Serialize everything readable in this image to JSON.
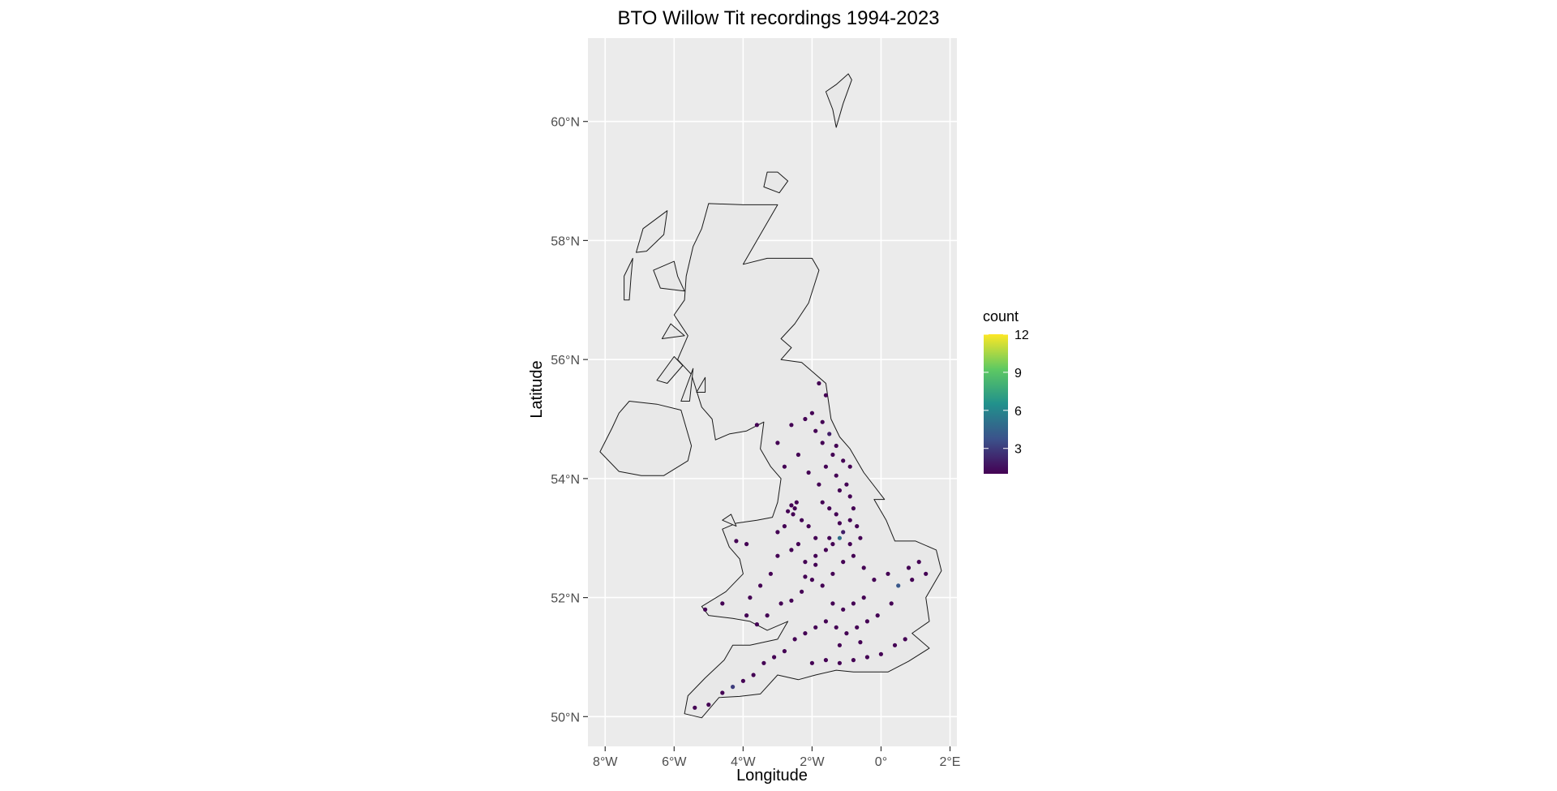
{
  "title": "BTO Willow Tit recordings 1994-2023",
  "colors": {
    "panel_bg": "#ebebeb",
    "grid": "#ffffff",
    "land": "#e8e8e8",
    "coast": "#1a1a1a",
    "viridis": [
      "#440154",
      "#3b528b",
      "#21918c",
      "#5ec962",
      "#fde725"
    ]
  },
  "chart_data": {
    "type": "scatter",
    "title": "BTO Willow Tit recordings 1994-2023",
    "xlabel": "Longitude",
    "ylabel": "Latitude",
    "xlim": [
      -8.5,
      2.2
    ],
    "ylim": [
      49.5,
      61.4
    ],
    "x_ticks": [
      -8,
      -6,
      -4,
      -2,
      0,
      2
    ],
    "x_tick_labels": [
      "8°W",
      "6°W",
      "4°W",
      "2°W",
      "0°",
      "2°E"
    ],
    "y_ticks": [
      50,
      52,
      54,
      56,
      58,
      60
    ],
    "y_tick_labels": [
      "50°N",
      "52°N",
      "54°N",
      "56°N",
      "58°N",
      "60°N"
    ],
    "grid": true,
    "legend": {
      "title": "count",
      "placement": "right",
      "range": [
        1,
        12
      ],
      "breaks": [
        3,
        6,
        9,
        12
      ],
      "break_labels": [
        "3",
        "6",
        "9",
        "12"
      ]
    },
    "regions": [
      {
        "name": "great-britain",
        "coords": [
          [
            -5.7,
            50.05
          ],
          [
            -5.2,
            49.98
          ],
          [
            -4.7,
            50.32
          ],
          [
            -4.1,
            50.34
          ],
          [
            -3.5,
            50.38
          ],
          [
            -3.0,
            50.7
          ],
          [
            -2.4,
            50.62
          ],
          [
            -1.9,
            50.7
          ],
          [
            -1.3,
            50.78
          ],
          [
            -0.8,
            50.75
          ],
          [
            0.2,
            50.75
          ],
          [
            0.8,
            50.93
          ],
          [
            1.4,
            51.15
          ],
          [
            0.9,
            51.4
          ],
          [
            1.4,
            51.6
          ],
          [
            1.3,
            52.0
          ],
          [
            1.75,
            52.45
          ],
          [
            1.6,
            52.8
          ],
          [
            1.0,
            52.95
          ],
          [
            0.4,
            52.95
          ],
          [
            0.15,
            53.3
          ],
          [
            -0.2,
            53.65
          ],
          [
            0.1,
            53.65
          ],
          [
            -0.5,
            54.1
          ],
          [
            -0.9,
            54.5
          ],
          [
            -1.2,
            54.7
          ],
          [
            -1.45,
            55.0
          ],
          [
            -1.6,
            55.6
          ],
          [
            -2.0,
            55.8
          ],
          [
            -2.3,
            55.95
          ],
          [
            -2.9,
            56.0
          ],
          [
            -2.6,
            56.2
          ],
          [
            -2.9,
            56.35
          ],
          [
            -2.5,
            56.6
          ],
          [
            -2.1,
            56.95
          ],
          [
            -1.8,
            57.5
          ],
          [
            -2.0,
            57.7
          ],
          [
            -3.3,
            57.7
          ],
          [
            -4.0,
            57.6
          ],
          [
            -3.5,
            58.1
          ],
          [
            -3.0,
            58.6
          ],
          [
            -4.0,
            58.6
          ],
          [
            -5.0,
            58.62
          ],
          [
            -5.2,
            58.2
          ],
          [
            -5.45,
            57.9
          ],
          [
            -5.65,
            57.4
          ],
          [
            -5.7,
            57.0
          ],
          [
            -6.0,
            56.75
          ],
          [
            -5.6,
            56.4
          ],
          [
            -5.9,
            56.0
          ],
          [
            -5.5,
            55.75
          ],
          [
            -5.2,
            55.2
          ],
          [
            -4.9,
            55.0
          ],
          [
            -4.8,
            54.65
          ],
          [
            -4.4,
            54.75
          ],
          [
            -3.9,
            54.8
          ],
          [
            -3.4,
            54.95
          ],
          [
            -3.5,
            54.5
          ],
          [
            -3.2,
            54.2
          ],
          [
            -2.9,
            54.0
          ],
          [
            -3.0,
            53.6
          ],
          [
            -3.15,
            53.35
          ],
          [
            -3.6,
            53.3
          ],
          [
            -4.2,
            53.25
          ],
          [
            -4.6,
            53.15
          ],
          [
            -4.4,
            52.85
          ],
          [
            -4.1,
            52.65
          ],
          [
            -4.0,
            52.4
          ],
          [
            -4.5,
            52.1
          ],
          [
            -5.2,
            51.85
          ],
          [
            -5.0,
            51.7
          ],
          [
            -4.3,
            51.65
          ],
          [
            -3.8,
            51.6
          ],
          [
            -3.3,
            51.45
          ],
          [
            -2.7,
            51.6
          ],
          [
            -3.0,
            51.3
          ],
          [
            -3.8,
            51.2
          ],
          [
            -4.3,
            51.2
          ],
          [
            -4.55,
            50.95
          ],
          [
            -5.1,
            50.65
          ],
          [
            -5.6,
            50.35
          ],
          [
            -5.7,
            50.05
          ]
        ]
      },
      {
        "name": "northern-ireland",
        "coords": [
          [
            -8.15,
            54.45
          ],
          [
            -7.6,
            54.12
          ],
          [
            -6.95,
            54.05
          ],
          [
            -6.3,
            54.05
          ],
          [
            -5.6,
            54.3
          ],
          [
            -5.5,
            54.55
          ],
          [
            -5.8,
            55.15
          ],
          [
            -6.5,
            55.25
          ],
          [
            -7.3,
            55.3
          ],
          [
            -7.6,
            55.1
          ],
          [
            -7.8,
            54.85
          ],
          [
            -8.15,
            54.45
          ]
        ]
      },
      {
        "name": "lewis-harris",
        "coords": [
          [
            -6.2,
            58.5
          ],
          [
            -6.9,
            58.2
          ],
          [
            -7.1,
            57.8
          ],
          [
            -6.8,
            57.82
          ],
          [
            -6.3,
            58.1
          ],
          [
            -6.2,
            58.5
          ]
        ]
      },
      {
        "name": "uist",
        "coords": [
          [
            -7.2,
            57.7
          ],
          [
            -7.45,
            57.4
          ],
          [
            -7.45,
            57.0
          ],
          [
            -7.3,
            57.0
          ],
          [
            -7.25,
            57.4
          ],
          [
            -7.2,
            57.7
          ]
        ]
      },
      {
        "name": "skye",
        "coords": [
          [
            -6.0,
            57.65
          ],
          [
            -6.6,
            57.5
          ],
          [
            -6.4,
            57.2
          ],
          [
            -5.7,
            57.15
          ],
          [
            -5.9,
            57.4
          ],
          [
            -6.0,
            57.65
          ]
        ]
      },
      {
        "name": "mull",
        "coords": [
          [
            -5.7,
            56.4
          ],
          [
            -6.35,
            56.35
          ],
          [
            -6.1,
            56.6
          ],
          [
            -5.7,
            56.4
          ]
        ]
      },
      {
        "name": "islay-jura",
        "coords": [
          [
            -6.0,
            56.05
          ],
          [
            -6.5,
            55.65
          ],
          [
            -6.2,
            55.6
          ],
          [
            -5.75,
            55.9
          ],
          [
            -6.0,
            56.05
          ]
        ]
      },
      {
        "name": "arran",
        "coords": [
          [
            -5.1,
            55.7
          ],
          [
            -5.35,
            55.45
          ],
          [
            -5.1,
            55.45
          ],
          [
            -5.1,
            55.7
          ]
        ]
      },
      {
        "name": "kintyre",
        "coords": [
          [
            -5.45,
            55.85
          ],
          [
            -5.8,
            55.3
          ],
          [
            -5.55,
            55.3
          ],
          [
            -5.45,
            55.85
          ]
        ]
      },
      {
        "name": "orkney",
        "coords": [
          [
            -3.3,
            59.15
          ],
          [
            -3.4,
            58.9
          ],
          [
            -2.95,
            58.8
          ],
          [
            -2.7,
            59.0
          ],
          [
            -3.0,
            59.15
          ],
          [
            -3.3,
            59.15
          ]
        ]
      },
      {
        "name": "shetland",
        "coords": [
          [
            -1.3,
            59.9
          ],
          [
            -1.4,
            60.2
          ],
          [
            -1.6,
            60.5
          ],
          [
            -1.3,
            60.62
          ],
          [
            -0.95,
            60.8
          ],
          [
            -0.85,
            60.7
          ],
          [
            -1.1,
            60.3
          ],
          [
            -1.3,
            59.9
          ]
        ]
      },
      {
        "name": "anglesey",
        "coords": [
          [
            -4.6,
            53.3
          ],
          [
            -4.2,
            53.2
          ],
          [
            -4.35,
            53.4
          ],
          [
            -4.6,
            53.3
          ]
        ]
      }
    ],
    "points": [
      {
        "x": -1.8,
        "y": 55.6,
        "value": 1
      },
      {
        "x": -1.6,
        "y": 55.4,
        "value": 1
      },
      {
        "x": -2.0,
        "y": 55.1,
        "value": 1
      },
      {
        "x": -1.7,
        "y": 54.95,
        "value": 1
      },
      {
        "x": -1.9,
        "y": 54.8,
        "value": 1
      },
      {
        "x": -1.5,
        "y": 54.75,
        "value": 2
      },
      {
        "x": -1.3,
        "y": 54.55,
        "value": 1
      },
      {
        "x": -2.2,
        "y": 55.0,
        "value": 1
      },
      {
        "x": -1.7,
        "y": 54.6,
        "value": 1
      },
      {
        "x": -1.4,
        "y": 54.4,
        "value": 1
      },
      {
        "x": -1.1,
        "y": 54.3,
        "value": 1
      },
      {
        "x": -0.9,
        "y": 54.2,
        "value": 1
      },
      {
        "x": -1.6,
        "y": 54.2,
        "value": 1
      },
      {
        "x": -1.3,
        "y": 54.05,
        "value": 1
      },
      {
        "x": -1.0,
        "y": 53.9,
        "value": 1
      },
      {
        "x": -1.8,
        "y": 53.9,
        "value": 1
      },
      {
        "x": -2.1,
        "y": 54.1,
        "value": 1
      },
      {
        "x": -2.6,
        "y": 53.55,
        "value": 1
      },
      {
        "x": -2.5,
        "y": 53.5,
        "value": 1
      },
      {
        "x": -2.7,
        "y": 53.45,
        "value": 1
      },
      {
        "x": -2.55,
        "y": 53.4,
        "value": 1
      },
      {
        "x": -2.45,
        "y": 53.6,
        "value": 1
      },
      {
        "x": -2.3,
        "y": 53.3,
        "value": 1
      },
      {
        "x": -2.1,
        "y": 53.2,
        "value": 1
      },
      {
        "x": -1.7,
        "y": 53.6,
        "value": 1
      },
      {
        "x": -1.5,
        "y": 53.5,
        "value": 1
      },
      {
        "x": -1.3,
        "y": 53.4,
        "value": 1
      },
      {
        "x": -1.2,
        "y": 53.25,
        "value": 1
      },
      {
        "x": -1.1,
        "y": 53.1,
        "value": 2
      },
      {
        "x": -0.9,
        "y": 53.3,
        "value": 1
      },
      {
        "x": -0.8,
        "y": 53.5,
        "value": 1
      },
      {
        "x": -0.7,
        "y": 53.2,
        "value": 1
      },
      {
        "x": -0.6,
        "y": 53.0,
        "value": 1
      },
      {
        "x": -1.4,
        "y": 52.9,
        "value": 1
      },
      {
        "x": -1.6,
        "y": 52.8,
        "value": 1
      },
      {
        "x": -1.9,
        "y": 52.7,
        "value": 1
      },
      {
        "x": -2.2,
        "y": 52.6,
        "value": 1
      },
      {
        "x": -2.6,
        "y": 52.8,
        "value": 1
      },
      {
        "x": -3.0,
        "y": 52.7,
        "value": 1
      },
      {
        "x": -3.2,
        "y": 52.4,
        "value": 1
      },
      {
        "x": -3.5,
        "y": 52.2,
        "value": 1
      },
      {
        "x": -3.8,
        "y": 52.0,
        "value": 1
      },
      {
        "x": -3.3,
        "y": 51.7,
        "value": 1
      },
      {
        "x": -2.9,
        "y": 51.9,
        "value": 1
      },
      {
        "x": -2.6,
        "y": 51.95,
        "value": 1
      },
      {
        "x": -2.3,
        "y": 52.1,
        "value": 1
      },
      {
        "x": -2.0,
        "y": 52.3,
        "value": 1
      },
      {
        "x": -1.7,
        "y": 52.2,
        "value": 1
      },
      {
        "x": -1.4,
        "y": 52.4,
        "value": 1
      },
      {
        "x": -1.1,
        "y": 52.6,
        "value": 1
      },
      {
        "x": -0.8,
        "y": 52.7,
        "value": 1
      },
      {
        "x": -0.5,
        "y": 52.5,
        "value": 1
      },
      {
        "x": -0.2,
        "y": 52.3,
        "value": 1
      },
      {
        "x": 0.2,
        "y": 52.4,
        "value": 1
      },
      {
        "x": 0.5,
        "y": 52.2,
        "value": 4
      },
      {
        "x": 0.8,
        "y": 52.5,
        "value": 1
      },
      {
        "x": 1.1,
        "y": 52.6,
        "value": 1
      },
      {
        "x": 1.3,
        "y": 52.4,
        "value": 1
      },
      {
        "x": 0.9,
        "y": 52.3,
        "value": 1
      },
      {
        "x": 0.3,
        "y": 51.9,
        "value": 1
      },
      {
        "x": -0.1,
        "y": 51.7,
        "value": 1
      },
      {
        "x": -0.4,
        "y": 51.6,
        "value": 1
      },
      {
        "x": -0.7,
        "y": 51.5,
        "value": 1
      },
      {
        "x": -1.0,
        "y": 51.4,
        "value": 1
      },
      {
        "x": -1.3,
        "y": 51.5,
        "value": 1
      },
      {
        "x": -1.6,
        "y": 51.6,
        "value": 1
      },
      {
        "x": -1.9,
        "y": 51.5,
        "value": 1
      },
      {
        "x": -2.2,
        "y": 51.4,
        "value": 1
      },
      {
        "x": -2.5,
        "y": 51.3,
        "value": 1
      },
      {
        "x": -2.8,
        "y": 51.1,
        "value": 1
      },
      {
        "x": -3.1,
        "y": 51.0,
        "value": 1
      },
      {
        "x": -3.4,
        "y": 50.9,
        "value": 1
      },
      {
        "x": -3.7,
        "y": 50.7,
        "value": 1
      },
      {
        "x": -4.0,
        "y": 50.6,
        "value": 1
      },
      {
        "x": -4.3,
        "y": 50.5,
        "value": 3
      },
      {
        "x": -4.6,
        "y": 50.4,
        "value": 1
      },
      {
        "x": -5.0,
        "y": 50.2,
        "value": 1
      },
      {
        "x": -5.4,
        "y": 50.15,
        "value": 1
      },
      {
        "x": -2.0,
        "y": 50.9,
        "value": 1
      },
      {
        "x": -1.6,
        "y": 50.95,
        "value": 1
      },
      {
        "x": -1.2,
        "y": 50.9,
        "value": 1
      },
      {
        "x": -0.8,
        "y": 50.95,
        "value": 1
      },
      {
        "x": -0.4,
        "y": 51.0,
        "value": 1
      },
      {
        "x": 0.0,
        "y": 51.05,
        "value": 1
      },
      {
        "x": 0.4,
        "y": 51.2,
        "value": 1
      },
      {
        "x": 0.7,
        "y": 51.3,
        "value": 1
      },
      {
        "x": -1.1,
        "y": 51.8,
        "value": 1
      },
      {
        "x": -1.4,
        "y": 51.9,
        "value": 1
      },
      {
        "x": -0.8,
        "y": 51.9,
        "value": 1
      },
      {
        "x": -0.5,
        "y": 52.0,
        "value": 1
      },
      {
        "x": -3.9,
        "y": 52.9,
        "value": 1
      },
      {
        "x": -4.2,
        "y": 52.95,
        "value": 1
      },
      {
        "x": -4.6,
        "y": 51.9,
        "value": 1
      },
      {
        "x": -5.1,
        "y": 51.8,
        "value": 1
      },
      {
        "x": -3.0,
        "y": 53.1,
        "value": 1
      },
      {
        "x": -2.8,
        "y": 53.2,
        "value": 1
      },
      {
        "x": -1.5,
        "y": 53.0,
        "value": 1
      },
      {
        "x": -1.9,
        "y": 53.0,
        "value": 1
      },
      {
        "x": -2.4,
        "y": 52.9,
        "value": 1
      },
      {
        "x": -0.9,
        "y": 53.7,
        "value": 1
      },
      {
        "x": -1.2,
        "y": 53.8,
        "value": 1
      },
      {
        "x": -3.0,
        "y": 54.6,
        "value": 1
      },
      {
        "x": -3.6,
        "y": 54.9,
        "value": 1
      },
      {
        "x": -2.6,
        "y": 54.9,
        "value": 1
      },
      {
        "x": -2.4,
        "y": 54.4,
        "value": 1
      },
      {
        "x": -2.8,
        "y": 54.2,
        "value": 1
      },
      {
        "x": -1.2,
        "y": 53.0,
        "value": 5
      },
      {
        "x": -0.9,
        "y": 52.9,
        "value": 1
      },
      {
        "x": -1.2,
        "y": 51.2,
        "value": 1
      },
      {
        "x": -0.6,
        "y": 51.25,
        "value": 1
      },
      {
        "x": -1.9,
        "y": 52.55,
        "value": 1
      },
      {
        "x": -2.2,
        "y": 52.35,
        "value": 1
      },
      {
        "x": -3.6,
        "y": 51.55,
        "value": 1
      },
      {
        "x": -3.9,
        "y": 51.7,
        "value": 1
      }
    ]
  }
}
